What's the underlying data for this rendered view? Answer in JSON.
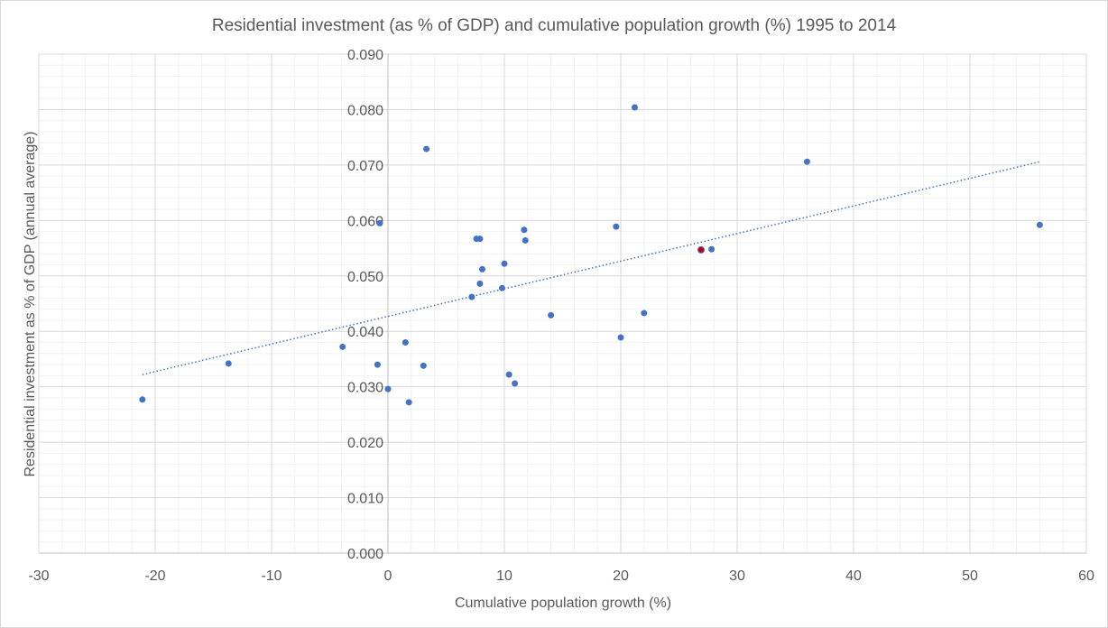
{
  "chart_data": {
    "type": "scatter",
    "title": "Residential investment (as % of GDP) and cumulative population growth (%) 1995 to 2014",
    "xlabel": "Cumulative population growth (%)",
    "ylabel": "Residential investment as % of GDP (annual average)",
    "xlim": [
      -30,
      60
    ],
    "ylim": [
      0,
      0.09
    ],
    "xticks": [
      "-30",
      "-20",
      "-10",
      "0",
      "10",
      "20",
      "30",
      "40",
      "50",
      "60"
    ],
    "yticks": [
      "0.000",
      "0.010",
      "0.020",
      "0.030",
      "0.040",
      "0.050",
      "0.060",
      "0.070",
      "0.080",
      "0.090"
    ],
    "grid": true,
    "minor_grid": true,
    "legend": "none",
    "colors": {
      "point": "#4472C4",
      "highlight": "#C00000",
      "trendline": "#4472C4",
      "grid_major": "#D9D9D9",
      "grid_minor": "#F2F2F2"
    },
    "points": [
      {
        "x": -21.1,
        "y": 0.0277
      },
      {
        "x": -13.7,
        "y": 0.0342
      },
      {
        "x": -3.9,
        "y": 0.0372
      },
      {
        "x": -0.9,
        "y": 0.034
      },
      {
        "x": -0.7,
        "y": 0.0595
      },
      {
        "x": 0.0,
        "y": 0.0296
      },
      {
        "x": 1.5,
        "y": 0.038
      },
      {
        "x": 1.8,
        "y": 0.0272
      },
      {
        "x": 3.05,
        "y": 0.0338
      },
      {
        "x": 3.3,
        "y": 0.0729
      },
      {
        "x": 7.2,
        "y": 0.0462
      },
      {
        "x": 7.6,
        "y": 0.0567
      },
      {
        "x": 7.9,
        "y": 0.0567
      },
      {
        "x": 7.9,
        "y": 0.0486
      },
      {
        "x": 8.1,
        "y": 0.0512
      },
      {
        "x": 9.8,
        "y": 0.0478
      },
      {
        "x": 10.0,
        "y": 0.0522
      },
      {
        "x": 10.4,
        "y": 0.0322
      },
      {
        "x": 10.9,
        "y": 0.0306
      },
      {
        "x": 11.7,
        "y": 0.0583
      },
      {
        "x": 11.8,
        "y": 0.0564
      },
      {
        "x": 14.0,
        "y": 0.0429
      },
      {
        "x": 19.6,
        "y": 0.0589
      },
      {
        "x": 20.0,
        "y": 0.0389
      },
      {
        "x": 21.2,
        "y": 0.0804
      },
      {
        "x": 22.0,
        "y": 0.0433
      },
      {
        "x": 27.8,
        "y": 0.0548
      },
      {
        "x": 36.0,
        "y": 0.0706
      },
      {
        "x": 56.0,
        "y": 0.0592
      }
    ],
    "highlighted_points": [
      {
        "x": 26.9,
        "y": 0.0547
      }
    ],
    "trendline": {
      "type": "linear",
      "style": "dotted",
      "slope": 0.000498,
      "intercept": 0.0427,
      "x_range": [
        -21.1,
        56.0
      ]
    }
  }
}
